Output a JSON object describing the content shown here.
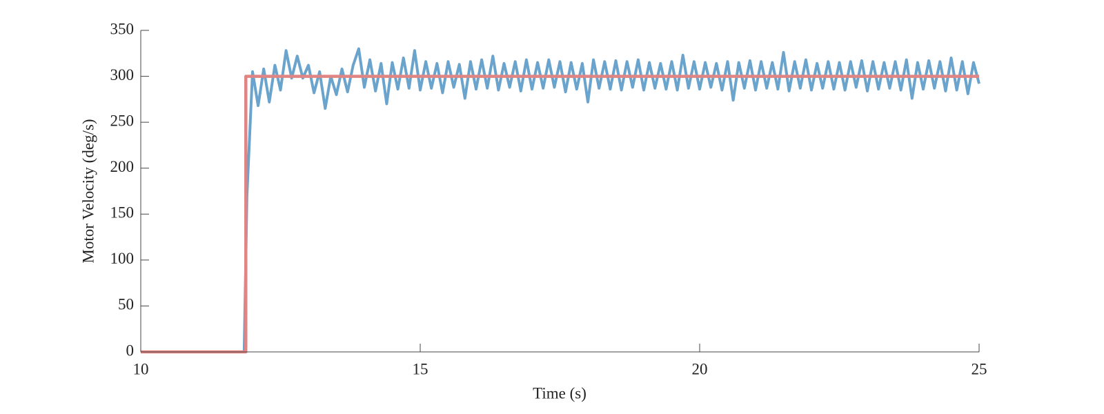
{
  "chart_data": {
    "type": "line",
    "xlabel": "Time (s)",
    "ylabel": "Motor Velocity (deg/s)",
    "xlim": [
      10,
      25
    ],
    "xticks": [
      10,
      15,
      20,
      25
    ],
    "ylim": [
      0,
      350
    ],
    "yticks": [
      0,
      50,
      100,
      150,
      200,
      250,
      300,
      350
    ],
    "grid": false,
    "series": [
      {
        "color": "#6aa3cc",
        "x": [
          10,
          11.85,
          11.9,
          12,
          12.1,
          12.2,
          12.3,
          12.4,
          12.5,
          12.6,
          12.7,
          12.8,
          12.9,
          13,
          13.1,
          13.2,
          13.3,
          13.4,
          13.5,
          13.6,
          13.7,
          13.8,
          13.9,
          14,
          14.1,
          14.2,
          14.3,
          14.4,
          14.5,
          14.6,
          14.7,
          14.8,
          14.9,
          15,
          15.1,
          15.2,
          15.3,
          15.4,
          15.5,
          15.6,
          15.7,
          15.8,
          15.9,
          16,
          16.1,
          16.2,
          16.3,
          16.4,
          16.5,
          16.6,
          16.7,
          16.8,
          16.9,
          17,
          17.1,
          17.2,
          17.3,
          17.4,
          17.5,
          17.6,
          17.7,
          17.8,
          17.9,
          18,
          18.1,
          18.2,
          18.3,
          18.4,
          18.5,
          18.6,
          18.7,
          18.8,
          18.9,
          19,
          19.1,
          19.2,
          19.3,
          19.4,
          19.5,
          19.6,
          19.7,
          19.8,
          19.9,
          20,
          20.1,
          20.2,
          20.3,
          20.4,
          20.5,
          20.6,
          20.7,
          20.8,
          20.9,
          21,
          21.1,
          21.2,
          21.3,
          21.4,
          21.5,
          21.6,
          21.7,
          21.8,
          21.9,
          22,
          22.1,
          22.2,
          22.3,
          22.4,
          22.5,
          22.6,
          22.7,
          22.8,
          22.9,
          23,
          23.1,
          23.2,
          23.3,
          23.4,
          23.5,
          23.6,
          23.7,
          23.8,
          23.9,
          24,
          24.1,
          24.2,
          24.3,
          24.4,
          24.5,
          24.6,
          24.7,
          24.8,
          24.9,
          25
        ],
        "values": [
          0,
          0,
          170,
          305,
          268,
          308,
          272,
          312,
          285,
          328,
          298,
          322,
          298,
          312,
          282,
          305,
          265,
          300,
          280,
          308,
          283,
          312,
          330,
          288,
          318,
          284,
          314,
          270,
          315,
          286,
          320,
          287,
          328,
          285,
          316,
          287,
          314,
          282,
          316,
          288,
          313,
          276,
          316,
          286,
          318,
          287,
          322,
          285,
          314,
          288,
          316,
          284,
          318,
          286,
          315,
          287,
          318,
          288,
          316,
          283,
          315,
          286,
          314,
          272,
          318,
          287,
          316,
          286,
          317,
          285,
          316,
          288,
          318,
          285,
          315,
          287,
          314,
          286,
          316,
          285,
          323,
          287,
          316,
          286,
          315,
          288,
          314,
          285,
          316,
          274,
          315,
          287,
          317,
          285,
          316,
          287,
          315,
          286,
          326,
          284,
          316,
          287,
          318,
          285,
          314,
          287,
          316,
          286,
          315,
          285,
          316,
          288,
          317,
          284,
          316,
          286,
          315,
          287,
          316,
          285,
          318,
          276,
          315,
          286,
          317,
          287,
          316,
          284,
          320,
          285,
          316,
          281,
          315,
          292
        ]
      },
      {
        "color": "#e08484",
        "x": [
          10,
          11.88,
          11.88,
          25
        ],
        "values": [
          0,
          0,
          300,
          300
        ]
      }
    ]
  }
}
